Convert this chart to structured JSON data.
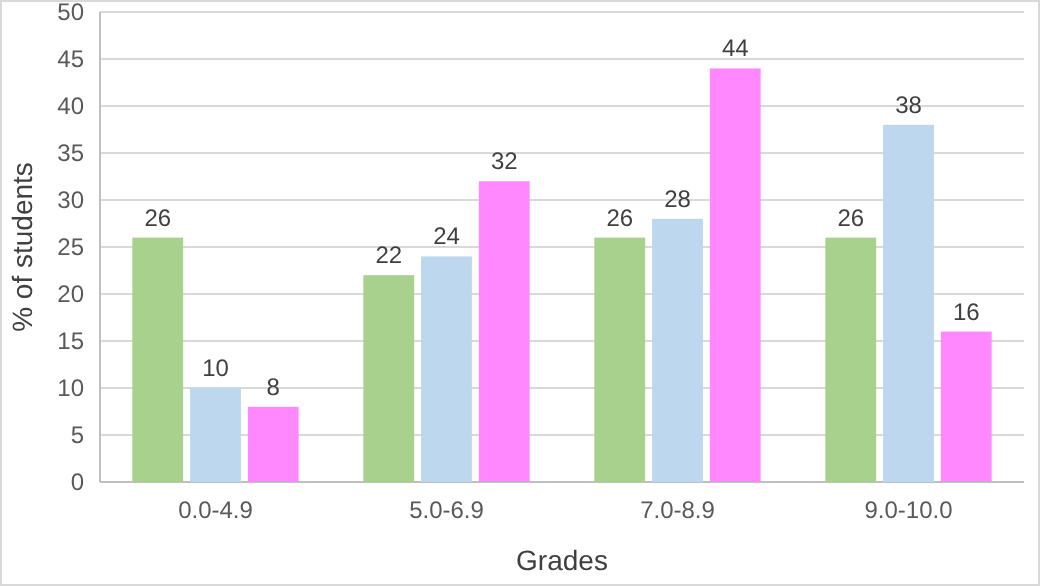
{
  "chart_data": {
    "type": "bar",
    "xlabel": "Grades",
    "ylabel": "% of students",
    "categories": [
      "0.0-4.9",
      "5.0-6.9",
      "7.0-8.9",
      "9.0-10.0"
    ],
    "series": [
      {
        "color": "#a9d18e",
        "values": [
          26,
          22,
          26,
          26
        ]
      },
      {
        "color": "#bdd7ee",
        "values": [
          10,
          24,
          28,
          38
        ]
      },
      {
        "color": "#ff88ff",
        "values": [
          8,
          32,
          44,
          16
        ]
      }
    ],
    "ylim": [
      0,
      50
    ],
    "yticks": [
      0,
      5,
      10,
      15,
      20,
      25,
      30,
      35,
      40,
      45,
      50
    ],
    "grid": "y",
    "data_labels": true
  }
}
